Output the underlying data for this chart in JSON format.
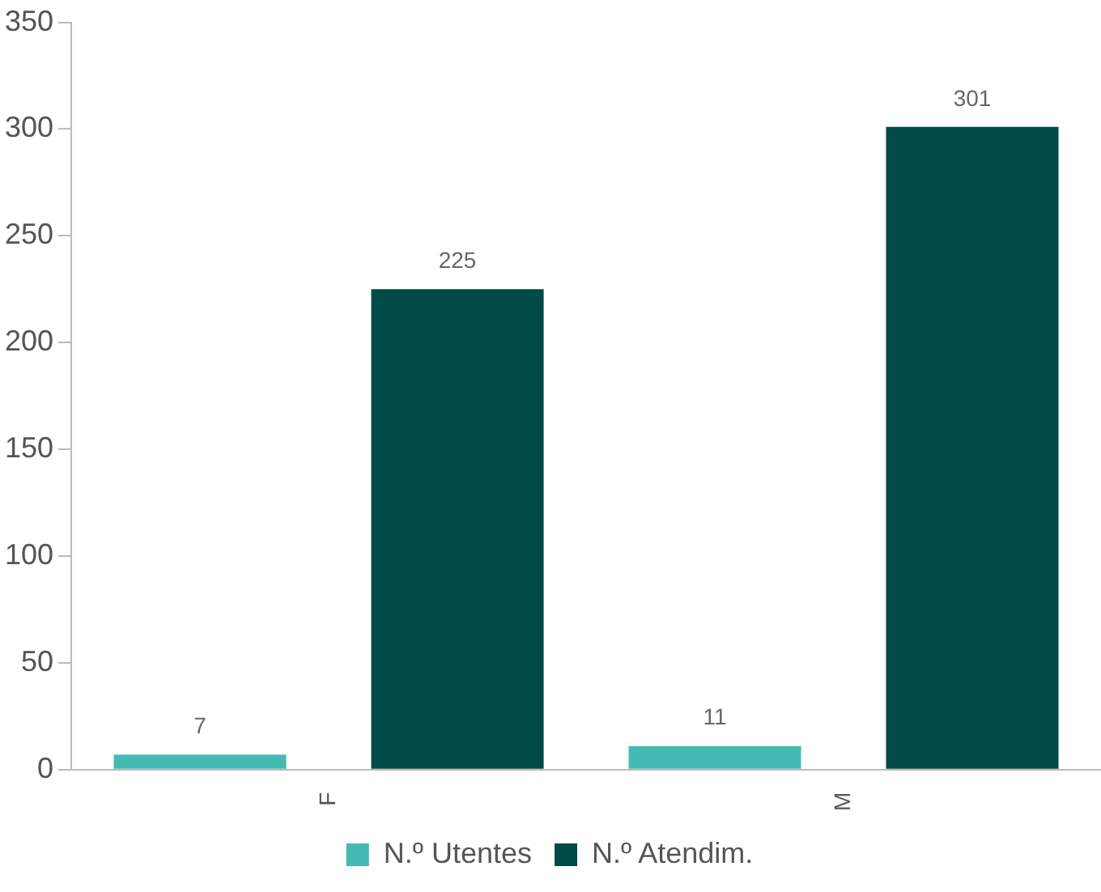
{
  "chart_data": {
    "type": "bar",
    "categories": [
      "F",
      "M"
    ],
    "series": [
      {
        "name": "N.º Utentes",
        "color": "#45bab4",
        "values": [
          7,
          11
        ]
      },
      {
        "name": "N.º Atendim.",
        "color": "#004a47",
        "values": [
          225,
          301
        ]
      }
    ],
    "ylim": [
      0,
      350
    ],
    "yticks": [
      0,
      50,
      100,
      150,
      200,
      250,
      300,
      350
    ],
    "grid": false,
    "legend": "bottom",
    "data_labels": true
  }
}
